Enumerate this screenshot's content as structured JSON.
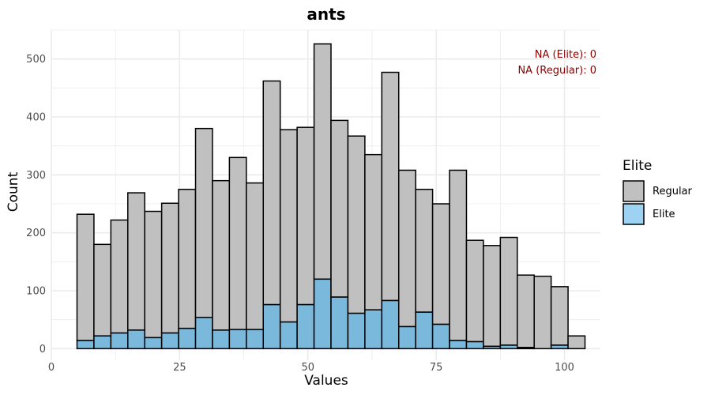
{
  "chart_data": {
    "type": "bar",
    "subtype": "stacked-histogram",
    "title": "ants",
    "xlabel": "Values",
    "ylabel": "Count",
    "xlim": [
      0,
      107
    ],
    "ylim": [
      -20,
      550
    ],
    "x_ticks": [
      0,
      25,
      50,
      75,
      100
    ],
    "y_ticks": [
      0,
      100,
      200,
      300,
      400,
      500
    ],
    "grid": true,
    "legend": {
      "title": "Elite",
      "position": "right"
    },
    "bin_width": 3.3,
    "bins": [
      6.65,
      9.95,
      13.25,
      16.55,
      19.85,
      23.15,
      26.45,
      29.75,
      33.05,
      36.35,
      39.65,
      42.95,
      46.25,
      49.55,
      52.85,
      56.15,
      59.45,
      62.75,
      66.05,
      69.35,
      72.65,
      75.95,
      79.25,
      82.55,
      85.85,
      89.15,
      92.45,
      95.75,
      99.05,
      102.35
    ],
    "series": [
      {
        "name": "Regular",
        "color": "#c0c0c0",
        "values": [
          218,
          158,
          195,
          237,
          218,
          224,
          240,
          326,
          258,
          297,
          253,
          386,
          332,
          306,
          406,
          305,
          306,
          268,
          394,
          270,
          212,
          208,
          294,
          175,
          174,
          186,
          125,
          125,
          101,
          22
        ]
      },
      {
        "name": "Elite",
        "color": "#7ab8dc",
        "values": [
          14,
          22,
          27,
          32,
          19,
          27,
          35,
          54,
          32,
          33,
          33,
          76,
          46,
          76,
          120,
          89,
          61,
          67,
          83,
          38,
          63,
          42,
          14,
          12,
          4,
          6,
          2,
          0,
          6,
          0
        ]
      }
    ],
    "annotations": [
      "NA (Elite): 0",
      "NA (Regular): 0"
    ]
  }
}
